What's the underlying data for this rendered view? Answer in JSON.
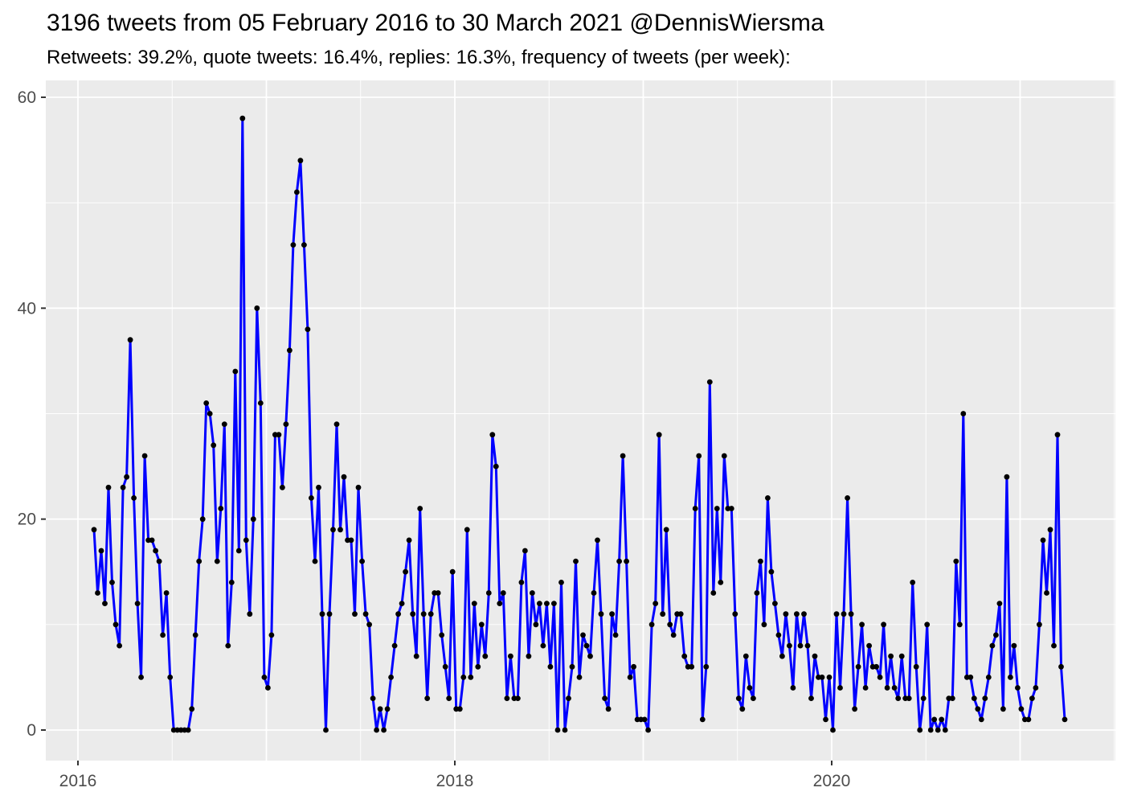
{
  "header": {
    "title": "3196 tweets from 05 February 2016 to 30 March 2021 @DennisWiersma",
    "subtitle": "Retweets: 39.2%, quote tweets: 16.4%, replies: 16.3%, frequency of tweets (per week):"
  },
  "chart_data": {
    "type": "line",
    "title": "3196 tweets from 05 February 2016 to 30 March 2021 @DennisWiersma",
    "subtitle": "Retweets: 39.2%, quote tweets: 16.4%, replies: 16.3%, frequency of tweets (per week):",
    "xlabel": "",
    "ylabel": "",
    "x_unit": "week",
    "x_start_label": "05 February 2016",
    "x_end_label": "30 March 2021",
    "x_tick_labels": [
      "2016",
      "2018",
      "2020"
    ],
    "x_tick_years": [
      2016,
      2018,
      2020
    ],
    "x_major_gridline_years": [
      2016,
      2017,
      2018,
      2019,
      2020,
      2021
    ],
    "x_minor_gridline_years": [
      2016.5,
      2017.5,
      2018.5,
      2019.5,
      2020.5,
      2021.5
    ],
    "y_tick_labels": [
      "0",
      "20",
      "40",
      "60"
    ],
    "y_ticks": [
      0,
      20,
      40,
      60
    ],
    "y_minor_ticks": [
      10,
      30,
      50
    ],
    "ylim": [
      0,
      60
    ],
    "grid": true,
    "legend_position": "none",
    "line_color": "#0000FF",
    "point_color": "#000000",
    "panel_bg": "#EBEBEB",
    "grid_color": "#FFFFFF",
    "axis_text_color": "#4D4D4D",
    "tick_mark_color": "#333333",
    "values": [
      19,
      13,
      17,
      12,
      23,
      14,
      10,
      8,
      23,
      24,
      37,
      22,
      12,
      5,
      26,
      18,
      18,
      17,
      16,
      9,
      13,
      5,
      0,
      0,
      0,
      0,
      0,
      2,
      9,
      16,
      20,
      31,
      30,
      27,
      16,
      21,
      29,
      8,
      14,
      34,
      17,
      58,
      18,
      11,
      20,
      40,
      31,
      5,
      4,
      9,
      28,
      28,
      23,
      29,
      36,
      46,
      51,
      54,
      46,
      38,
      22,
      16,
      23,
      11,
      0,
      11,
      19,
      29,
      19,
      24,
      18,
      18,
      11,
      23,
      16,
      11,
      10,
      3,
      0,
      2,
      0,
      2,
      5,
      8,
      11,
      12,
      15,
      18,
      11,
      7,
      21,
      11,
      3,
      11,
      13,
      13,
      9,
      6,
      3,
      15,
      2,
      2,
      5,
      19,
      5,
      12,
      6,
      10,
      7,
      13,
      28,
      25,
      12,
      13,
      3,
      7,
      3,
      3,
      14,
      17,
      7,
      13,
      10,
      12,
      8,
      12,
      6,
      12,
      0,
      14,
      0,
      3,
      6,
      16,
      5,
      9,
      8,
      7,
      13,
      18,
      11,
      3,
      2,
      11,
      9,
      16,
      26,
      16,
      5,
      6,
      1,
      1,
      1,
      0,
      10,
      12,
      28,
      11,
      19,
      10,
      9,
      11,
      11,
      7,
      6,
      6,
      21,
      26,
      1,
      6,
      33,
      13,
      21,
      14,
      26,
      21,
      21,
      11,
      3,
      2,
      7,
      4,
      3,
      13,
      16,
      10,
      22,
      15,
      12,
      9,
      7,
      11,
      8,
      4,
      11,
      8,
      11,
      8,
      3,
      7,
      5,
      5,
      1,
      5,
      0,
      11,
      4,
      11,
      22,
      11,
      2,
      6,
      10,
      4,
      8,
      6,
      6,
      5,
      10,
      4,
      7,
      4,
      3,
      7,
      3,
      3,
      14,
      6,
      0,
      3,
      10,
      0,
      1,
      0,
      1,
      0,
      3,
      3,
      16,
      10,
      30,
      5,
      5,
      3,
      2,
      1,
      3,
      5,
      8,
      9,
      12,
      2,
      24,
      5,
      8,
      4,
      2,
      1,
      1,
      3,
      4,
      10,
      18,
      13,
      19,
      8,
      28,
      6,
      1
    ]
  }
}
